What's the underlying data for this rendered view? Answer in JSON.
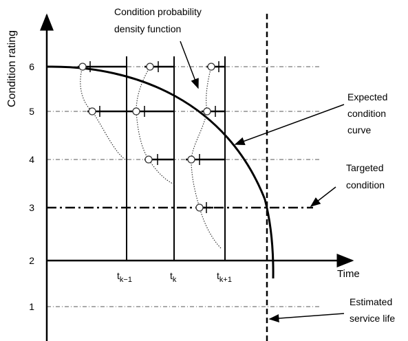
{
  "axis": {
    "y_label": "Condition rating",
    "x_label": "Time",
    "y_ticks": [
      "6",
      "5",
      "4",
      "3",
      "2",
      "1"
    ]
  },
  "time_labels": [
    {
      "base": "t",
      "sub": "k−1"
    },
    {
      "base": "t",
      "sub": "k"
    },
    {
      "base": "t",
      "sub": "k+1"
    }
  ],
  "annotations": {
    "pdf": [
      "Condition probability",
      "density function"
    ],
    "curve": [
      "Expected",
      "condition",
      "curve"
    ],
    "target": [
      "Targeted",
      "condition"
    ],
    "life": [
      "Estimated",
      "service life"
    ]
  }
}
